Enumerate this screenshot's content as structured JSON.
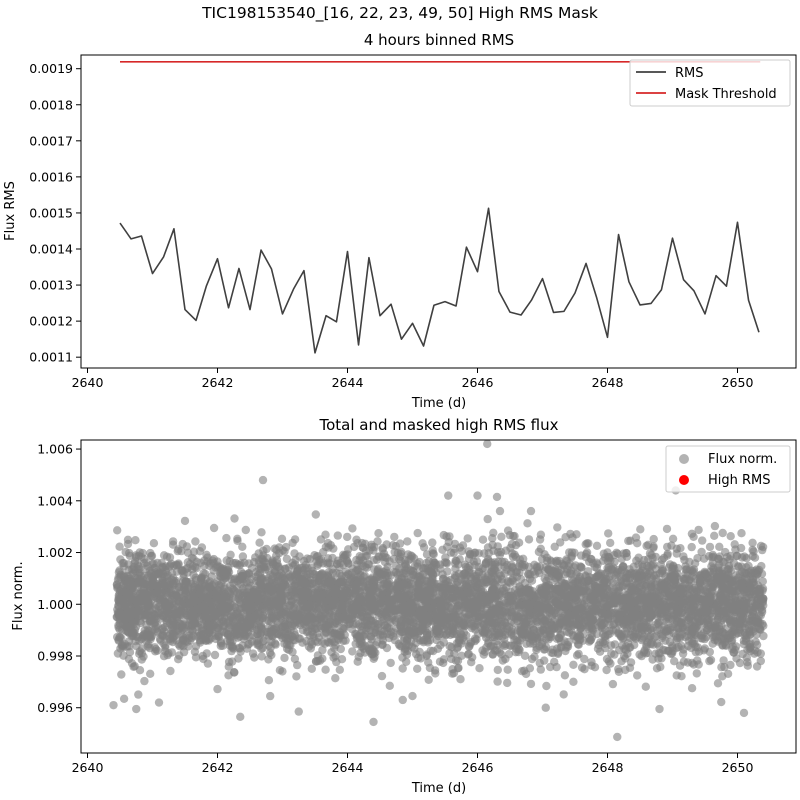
{
  "suptitle": "TIC198153540_[16, 22, 23, 49, 50] High RMS Mask",
  "chart_data": [
    {
      "type": "line",
      "title": "4 hours binned RMS",
      "xlabel": "Time (d)",
      "ylabel": "Flux RMS",
      "xlim": [
        2639.9,
        2650.9
      ],
      "ylim": [
        0.00107,
        0.001938
      ],
      "xticks": [
        2640,
        2642,
        2644,
        2646,
        2648,
        2650
      ],
      "xtick_labels": [
        "2640",
        "2642",
        "2644",
        "2646",
        "2648",
        "2650"
      ],
      "yticks": [
        0.0011,
        0.0012,
        0.0013,
        0.0014,
        0.0015,
        0.0016,
        0.0017,
        0.0018,
        0.0019
      ],
      "ytick_labels": [
        "0.0011",
        "0.0012",
        "0.0013",
        "0.0014",
        "0.0015",
        "0.0016",
        "0.0017",
        "0.0018",
        "0.0019"
      ],
      "grid": false,
      "legend": "top-right",
      "series": [
        {
          "name": "RMS",
          "color": "#404040",
          "x": [
            2640.5,
            2640.67,
            2640.83,
            2641.0,
            2641.17,
            2641.33,
            2641.5,
            2641.67,
            2641.83,
            2642.0,
            2642.17,
            2642.33,
            2642.5,
            2642.67,
            2642.83,
            2643.0,
            2643.17,
            2643.33,
            2643.5,
            2643.67,
            2643.83,
            2644.0,
            2644.17,
            2644.33,
            2644.5,
            2644.67,
            2644.83,
            2645.0,
            2645.17,
            2645.33,
            2645.5,
            2645.67,
            2645.83,
            2646.0,
            2646.17,
            2646.33,
            2646.5,
            2646.67,
            2646.83,
            2647.0,
            2647.17,
            2647.33,
            2647.5,
            2647.67,
            2647.83,
            2648.0,
            2648.17,
            2648.33,
            2648.5,
            2648.67,
            2648.83,
            2649.0,
            2649.17,
            2649.33,
            2649.5,
            2649.67,
            2649.83,
            2650.0,
            2650.17,
            2650.33
          ],
          "y": [
            0.001472,
            0.001428,
            0.001436,
            0.001332,
            0.001378,
            0.001456,
            0.001232,
            0.001202,
            0.001298,
            0.001373,
            0.001237,
            0.001346,
            0.001232,
            0.001397,
            0.001345,
            0.00122,
            0.001289,
            0.00134,
            0.001112,
            0.001215,
            0.001198,
            0.001393,
            0.001134,
            0.001376,
            0.001215,
            0.001247,
            0.00115,
            0.001194,
            0.001131,
            0.001244,
            0.001254,
            0.001242,
            0.001405,
            0.001337,
            0.001513,
            0.001282,
            0.001225,
            0.001217,
            0.001258,
            0.001318,
            0.001224,
            0.001227,
            0.001278,
            0.00136,
            0.001267,
            0.001155,
            0.00144,
            0.001309,
            0.001245,
            0.001249,
            0.001287,
            0.00143,
            0.001315,
            0.001284,
            0.00122,
            0.001326,
            0.001297,
            0.001474,
            0.001258,
            0.001169
          ]
        },
        {
          "name": "Mask Threshold",
          "color": "#d62728",
          "x": [
            2640.5,
            2650.35
          ],
          "y": [
            0.001919,
            0.001919
          ]
        }
      ]
    },
    {
      "type": "scatter",
      "title": "Total and masked high RMS flux",
      "xlabel": "Time (d)",
      "ylabel": "Flux norm.",
      "xlim": [
        2639.9,
        2650.9
      ],
      "ylim": [
        0.99425,
        1.00635
      ],
      "xticks": [
        2640,
        2642,
        2644,
        2646,
        2648,
        2650
      ],
      "xtick_labels": [
        "2640",
        "2642",
        "2644",
        "2646",
        "2648",
        "2650"
      ],
      "yticks": [
        0.996,
        0.998,
        1.0,
        1.002,
        1.004,
        1.006
      ],
      "ytick_labels": [
        "0.996",
        "0.998",
        "1.000",
        "1.002",
        "1.004",
        "1.006"
      ],
      "grid": false,
      "legend": "top-right",
      "dense_band": {
        "x": [
          2640.45,
          2650.4
        ],
        "center": 1.0,
        "sigma": 0.00105,
        "approx_point_count": 6000
      },
      "series": [
        {
          "name": "Flux norm.",
          "color": "#808080",
          "alpha": 0.6,
          "outliers": {
            "x": [
              2646.15,
              2648.15,
              2649.05,
              2640.75,
              2642.35,
              2644.4,
              2645.55,
              2646.3,
              2643.25,
              2650.1,
              2642.7,
              2648.8,
              2644.85,
              2646.0,
              2647.05,
              2640.4,
              2649.75,
              2641.1,
              2645.0
            ],
            "y": [
              1.0062,
              0.99487,
              1.0044,
              0.99595,
              0.99565,
              0.99545,
              1.0042,
              1.00415,
              0.99585,
              0.9958,
              1.0048,
              0.99595,
              0.9963,
              1.0042,
              0.996,
              0.9961,
              0.99622,
              0.9962,
              0.99645
            ]
          }
        },
        {
          "name": "High RMS",
          "color": "#ff0000",
          "x": [],
          "y": []
        }
      ]
    }
  ]
}
